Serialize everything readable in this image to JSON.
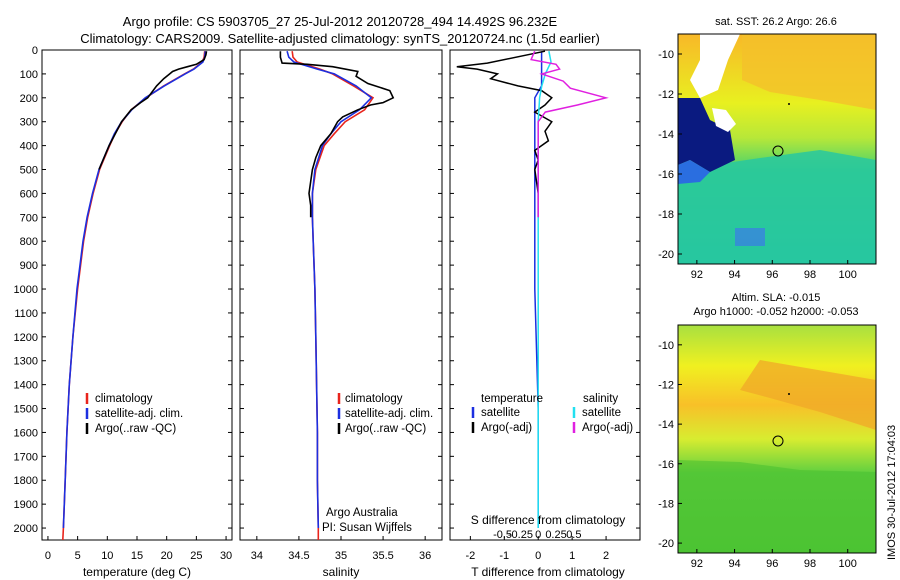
{
  "titles": {
    "line1": "Argo profile: CS 5903705_27 25-Jul-2012 20120728_494 14.492S 96.232E",
    "line2": "Climatology: CARS2009. Satellite-adjusted climatology: synTS_20120724.nc (1.5d earlier)"
  },
  "depth_ticks": [
    0,
    100,
    200,
    300,
    400,
    500,
    600,
    700,
    800,
    900,
    1000,
    1100,
    1200,
    1300,
    1400,
    1500,
    1600,
    1700,
    1800,
    1900,
    2000
  ],
  "colors": {
    "climatology": "#e8241c",
    "satellite": "#1c2fe0",
    "argo": "#000000",
    "cyan": "#22e0f0",
    "magenta": "#e020e0"
  },
  "chart_data": [
    {
      "type": "line",
      "xlabel": "temperature (deg C)",
      "ylabel": "",
      "xlim": [
        -1,
        31
      ],
      "ylim": [
        2050,
        0
      ],
      "x_ticks": [
        0,
        5,
        10,
        15,
        20,
        25,
        30
      ],
      "legend": [
        "climatology",
        "satellite-adj. clim.",
        "Argo(..raw -QC)"
      ],
      "series": [
        {
          "name": "climatology",
          "depth": [
            5,
            30,
            50,
            80,
            100,
            150,
            200,
            250,
            300,
            350,
            400,
            500,
            600,
            700,
            800,
            900,
            1000,
            1200,
            1400,
            1600,
            1800,
            2000,
            2050
          ],
          "values": [
            26.4,
            26.3,
            26.0,
            24.5,
            23.0,
            19.5,
            16.5,
            14.0,
            12.5,
            11.3,
            10.4,
            8.7,
            7.6,
            6.7,
            6.0,
            5.5,
            5.0,
            4.2,
            3.6,
            3.2,
            2.9,
            2.6,
            2.5
          ]
        },
        {
          "name": "satellite-adj. clim.",
          "depth": [
            5,
            30,
            50,
            80,
            100,
            150,
            200,
            250,
            300,
            350,
            400,
            500,
            600,
            700,
            800,
            900,
            1000,
            1200,
            1400,
            1600,
            1800,
            2000
          ],
          "values": [
            26.5,
            26.4,
            26.1,
            24.6,
            23.1,
            19.6,
            16.4,
            14.1,
            12.4,
            11.2,
            10.3,
            8.6,
            7.5,
            6.6,
            5.9,
            5.4,
            4.9,
            4.2,
            3.6,
            3.2,
            2.9,
            2.6
          ]
        },
        {
          "name": "Argo(..raw -QC)",
          "depth": [
            5,
            20,
            40,
            60,
            70,
            80,
            90,
            100,
            120,
            150,
            180,
            200,
            220,
            250,
            300,
            400,
            500
          ],
          "values": [
            26.7,
            26.6,
            26.3,
            25.0,
            23.5,
            22.0,
            21.0,
            20.5,
            19.5,
            18.3,
            17.4,
            16.8,
            15.6,
            14.0,
            12.4,
            10.3,
            8.6
          ]
        }
      ]
    },
    {
      "type": "line",
      "xlabel": "salinity",
      "ylabel": "",
      "xlim": [
        33.8,
        36.2
      ],
      "ylim": [
        2050,
        0
      ],
      "x_ticks": [
        34,
        34.5,
        35,
        35.5,
        36
      ],
      "legend": [
        "climatology",
        "satellite-adj. clim.",
        "Argo(..raw -QC)"
      ],
      "annotations": [
        "Argo Australia",
        "PI: Susan Wijffels"
      ],
      "series": [
        {
          "name": "climatology",
          "depth": [
            5,
            30,
            50,
            80,
            100,
            150,
            200,
            250,
            300,
            350,
            400,
            500,
            600,
            700,
            800,
            1000,
            1200,
            1400,
            1600,
            1800,
            2000,
            2050
          ],
          "values": [
            34.42,
            34.43,
            34.48,
            34.75,
            34.9,
            35.15,
            35.38,
            35.28,
            35.05,
            34.92,
            34.8,
            34.7,
            34.66,
            34.66,
            34.67,
            34.69,
            34.7,
            34.71,
            34.72,
            34.72,
            34.73,
            34.73
          ]
        },
        {
          "name": "satellite-adj. clim.",
          "depth": [
            5,
            30,
            50,
            80,
            100,
            150,
            200,
            250,
            300,
            350,
            400,
            500,
            600,
            700,
            800,
            1000,
            1200,
            1400,
            1600,
            1800,
            2000
          ],
          "values": [
            34.36,
            34.38,
            34.44,
            34.72,
            34.92,
            35.18,
            35.36,
            35.22,
            35.0,
            34.88,
            34.78,
            34.69,
            34.66,
            34.66,
            34.67,
            34.69,
            34.7,
            34.71,
            34.72,
            34.72,
            34.73
          ]
        },
        {
          "name": "Argo(..raw -QC)",
          "depth": [
            5,
            30,
            55,
            60,
            70,
            90,
            110,
            140,
            170,
            200,
            220,
            230,
            250,
            280,
            300,
            350,
            400,
            450,
            500,
            600,
            650,
            700
          ],
          "values": [
            34.28,
            34.28,
            34.3,
            34.6,
            34.9,
            35.2,
            35.18,
            35.32,
            35.58,
            35.62,
            35.5,
            35.35,
            35.2,
            35.02,
            34.96,
            34.88,
            34.76,
            34.7,
            34.66,
            34.62,
            34.64,
            34.64
          ]
        }
      ]
    },
    {
      "type": "line",
      "xlabel": "T difference from climatology",
      "x2label": "S difference from climatology",
      "ylabel": "",
      "xlim": [
        -2.6,
        3.0
      ],
      "ylim": [
        2050,
        0
      ],
      "x_ticks": [
        -2,
        -1,
        0,
        1,
        2
      ],
      "x2_ticks": [
        "-0.5",
        "-0.25",
        "0",
        "0.25",
        "0.5"
      ],
      "legend_headers": [
        "temperature",
        "salinity"
      ],
      "legend": [
        "satellite",
        "Argo(-adj)",
        "satellite",
        "Argo(-adj)"
      ],
      "series": [
        {
          "name": "satellite",
          "depth": [
            5,
            50,
            100,
            150,
            200,
            300,
            400,
            500,
            700,
            1000,
            1500,
            2000
          ],
          "values": [
            0.1,
            0.1,
            0.1,
            0.1,
            -0.1,
            -0.1,
            -0.1,
            -0.1,
            -0.1,
            -0.1,
            0.0,
            0.0
          ]
        },
        {
          "name": "Argo(-adj)",
          "depth": [
            5,
            55,
            70,
            80,
            100,
            120,
            150,
            170,
            200,
            230,
            260,
            300,
            340,
            380,
            420,
            460,
            500,
            600,
            700
          ],
          "values": [
            0.2,
            -1.5,
            -2.4,
            -1.8,
            -1.2,
            -1.4,
            -0.6,
            0.1,
            0.4,
            0.2,
            -0.1,
            0.4,
            0.2,
            0.3,
            -0.1,
            0.0,
            -0.1,
            0.0,
            0.0
          ]
        },
        {
          "name": "satellite",
          "depth": [
            5,
            50,
            100,
            150,
            200,
            300,
            500,
            800,
            1200,
            1600,
            2000
          ],
          "values": [
            0.15,
            0.18,
            0.1,
            0.05,
            0.02,
            0.0,
            0.0,
            0.0,
            0.0,
            0.0,
            0.0
          ]
        },
        {
          "name": "Argo(-adj)",
          "depth": [
            5,
            40,
            60,
            80,
            100,
            130,
            160,
            200,
            230,
            260,
            300,
            400,
            500,
            700
          ],
          "values": [
            -0.05,
            -0.1,
            0.25,
            0.3,
            0.05,
            0.35,
            0.45,
            0.95,
            0.55,
            0.1,
            0.0,
            0.0,
            0.0,
            0.0
          ]
        }
      ]
    },
    {
      "type": "heatmap",
      "title": "sat. SST: 26.2 Argo: 26.6",
      "x_ticks": [
        92,
        94,
        96,
        98,
        100
      ],
      "y_ticks": [
        -10,
        -12,
        -14,
        -16,
        -18,
        -20
      ],
      "xlim": [
        91,
        101.5
      ],
      "ylim": [
        -20.5,
        -9
      ]
    },
    {
      "type": "heatmap",
      "title": "Altim. SLA: -0.015",
      "subtitle": "Argo h1000: -0.052 h2000: -0.053",
      "x_ticks": [
        92,
        94,
        96,
        98,
        100
      ],
      "y_ticks": [
        -10,
        -12,
        -14,
        -16,
        -18,
        -20
      ],
      "xlim": [
        91,
        101.5
      ],
      "ylim": [
        -20.5,
        -9
      ]
    }
  ],
  "footer": {
    "stamp": "IMOS 30-Jul-2012 17:04:03"
  }
}
